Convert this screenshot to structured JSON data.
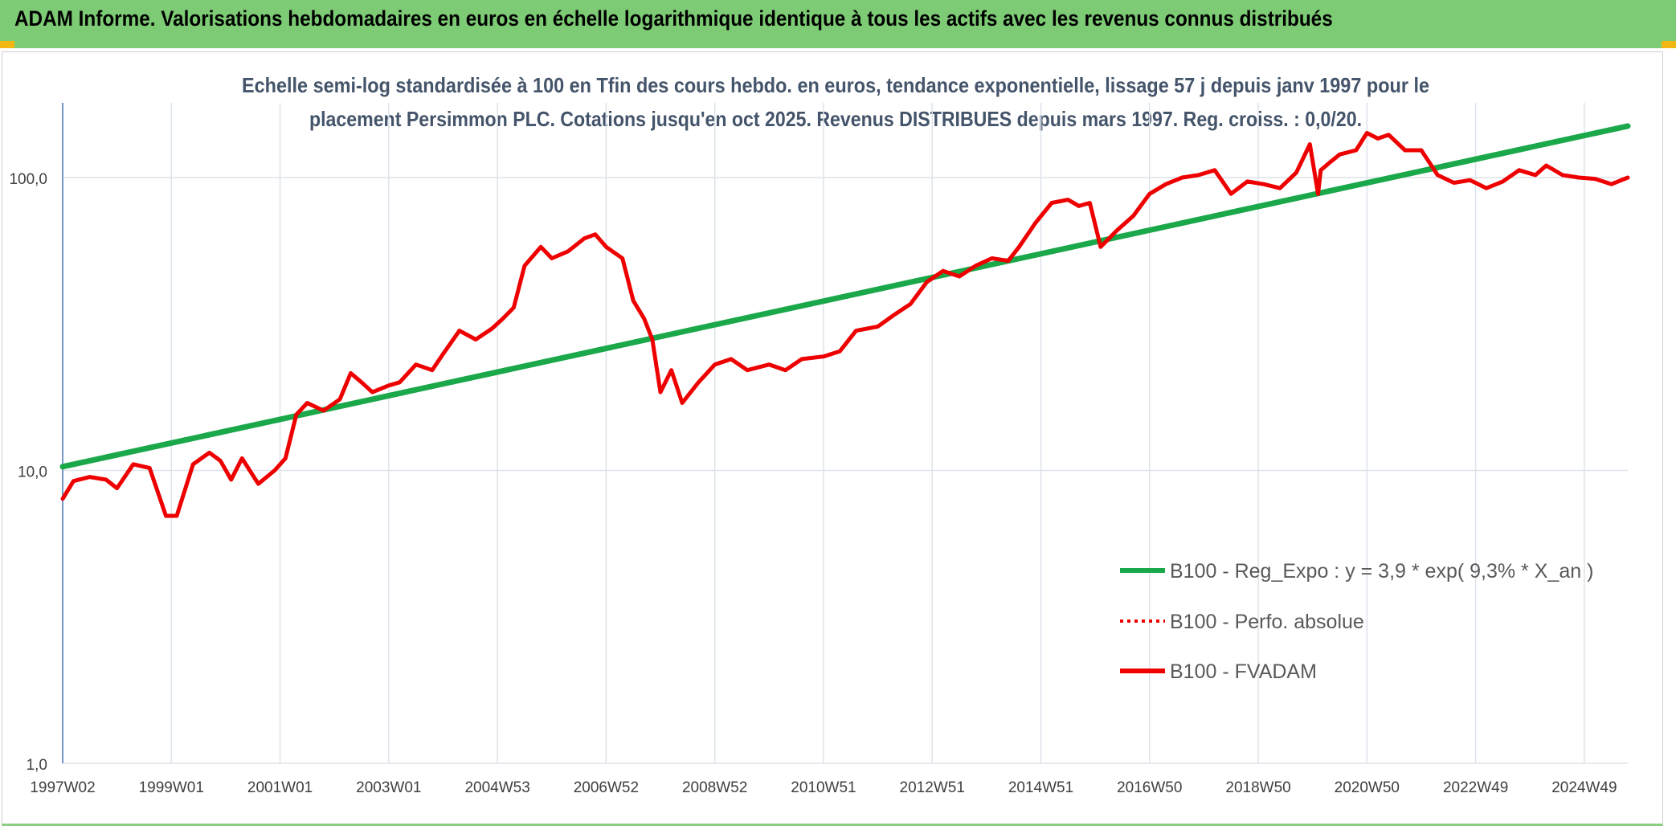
{
  "header": {
    "title": "ADAM Informe. Valorisations hebdomadaires en euros en échelle logarithmique identique à tous les actifs avec les revenus connus distribués"
  },
  "colors": {
    "header_bg": "#7dcb74",
    "corner_accent": "#f2b713",
    "trend_line": "#1aa84a",
    "fvadam_line": "#ee0000",
    "gridline": "#dde3ea",
    "title_text": "#44546a"
  },
  "chart_data": {
    "type": "line",
    "title_lines": [
      "Echelle semi-log standardisée à 100 en Tfin des cours hebdo. en euros, tendance exponentielle, lissage 57 j depuis janv 1997 pour le",
      "placement Persimmon PLC. Cotations jusqu'en oct 2025. Revenus DISTRIBUES depuis mars 1997. Reg. croiss. : 0,0/20."
    ],
    "y_scale": "log",
    "ylim": [
      1,
      180
    ],
    "y_ticks": [
      1,
      10,
      100
    ],
    "y_tick_labels": [
      "1,0",
      "10,0",
      "100,0"
    ],
    "x_range": [
      1997.0,
      2025.8
    ],
    "x_tick_labels": [
      "1997W02",
      "1999W01",
      "2001W01",
      "2003W01",
      "2004W53",
      "2006W52",
      "2008W52",
      "2010W51",
      "2012W51",
      "2014W51",
      "2016W50",
      "2018W50",
      "2020W50",
      "2022W49",
      "2024W49"
    ],
    "x_tick_years": [
      1997.0,
      1999.0,
      2001.0,
      2003.0,
      2005.0,
      2007.0,
      2009.0,
      2011.0,
      2013.0,
      2015.0,
      2017.0,
      2019.0,
      2021.0,
      2023.0,
      2025.0
    ],
    "grid": true,
    "legend_position": "bottom-right",
    "legend": [
      {
        "label": "B100 - Reg_Expo : y = 3,9 * exp( 9,3% *  X_an )",
        "style": "solid",
        "color": "#1aa84a"
      },
      {
        "label": "B100 - Perfo. absolue",
        "style": "dotted",
        "color": "#ee0000"
      },
      {
        "label": "B100 - FVADAM",
        "style": "solid",
        "color": "#ee0000"
      }
    ],
    "series": [
      {
        "name": "B100 - Reg_Expo : y = 3,9 * exp( 9,3% *  X_an )",
        "x": [
          1997.0,
          2025.8
        ],
        "y": [
          10.3,
          150
        ]
      },
      {
        "name": "B100 - FVADAM",
        "x": [
          1997.0,
          1997.2,
          1997.5,
          1997.8,
          1998.0,
          1998.3,
          1998.6,
          1998.9,
          1999.1,
          1999.4,
          1999.7,
          1999.9,
          2000.1,
          2000.3,
          2000.6,
          2000.9,
          2001.1,
          2001.3,
          2001.5,
          2001.8,
          2002.1,
          2002.3,
          2002.5,
          2002.7,
          2003.0,
          2003.2,
          2003.5,
          2003.8,
          2004.0,
          2004.3,
          2004.6,
          2004.9,
          2005.1,
          2005.3,
          2005.5,
          2005.8,
          2006.0,
          2006.3,
          2006.6,
          2006.8,
          2007.0,
          2007.3,
          2007.5,
          2007.7,
          2007.85,
          2008.0,
          2008.2,
          2008.4,
          2008.7,
          2009.0,
          2009.3,
          2009.6,
          2010.0,
          2010.3,
          2010.6,
          2011.0,
          2011.3,
          2011.6,
          2012.0,
          2012.3,
          2012.6,
          2012.9,
          2013.2,
          2013.5,
          2013.8,
          2014.1,
          2014.4,
          2014.6,
          2014.9,
          2015.2,
          2015.5,
          2015.7,
          2015.9,
          2016.1,
          2016.4,
          2016.7,
          2017.0,
          2017.3,
          2017.6,
          2017.9,
          2018.2,
          2018.5,
          2018.8,
          2019.1,
          2019.4,
          2019.7,
          2019.95,
          2020.1,
          2020.15,
          2020.3,
          2020.5,
          2020.8,
          2021.0,
          2021.2,
          2021.4,
          2021.7,
          2022.0,
          2022.3,
          2022.6,
          2022.9,
          2023.2,
          2023.5,
          2023.8,
          2024.1,
          2024.3,
          2024.6,
          2024.9,
          2025.2,
          2025.5,
          2025.8
        ],
        "y": [
          8.0,
          9.2,
          9.5,
          9.3,
          8.7,
          10.5,
          10.2,
          7.0,
          7.0,
          10.5,
          11.5,
          10.8,
          9.3,
          11.0,
          9.0,
          10.0,
          11.0,
          15.5,
          17.0,
          16.0,
          17.5,
          21.5,
          20.0,
          18.5,
          19.5,
          20.0,
          23.0,
          22.0,
          25.0,
          30.0,
          28.0,
          30.5,
          33.0,
          36.0,
          50.0,
          58.0,
          53.0,
          56.0,
          62.0,
          64.0,
          58.0,
          53.0,
          38.0,
          33.0,
          28.0,
          18.5,
          22.0,
          17.0,
          20.0,
          23.0,
          24.0,
          22.0,
          23.0,
          22.0,
          24.0,
          24.5,
          25.5,
          30.0,
          31.0,
          34.0,
          37.0,
          44.0,
          48.0,
          46.0,
          50.0,
          53.0,
          52.0,
          58.0,
          70.0,
          82.0,
          84.0,
          80.0,
          82.0,
          58.0,
          66.0,
          74.0,
          88.0,
          95.0,
          100.0,
          102.0,
          106.0,
          88.0,
          97.0,
          95.0,
          92.0,
          104.0,
          130.0,
          88.0,
          106.0,
          112.0,
          120.0,
          124.0,
          142.0,
          136.0,
          140.0,
          124.0,
          124.0,
          102.0,
          96.0,
          98.0,
          92.0,
          97.0,
          106.0,
          102.0,
          110.0,
          102.0,
          100.0,
          99.0,
          95.0,
          100.0
        ]
      }
    ]
  }
}
